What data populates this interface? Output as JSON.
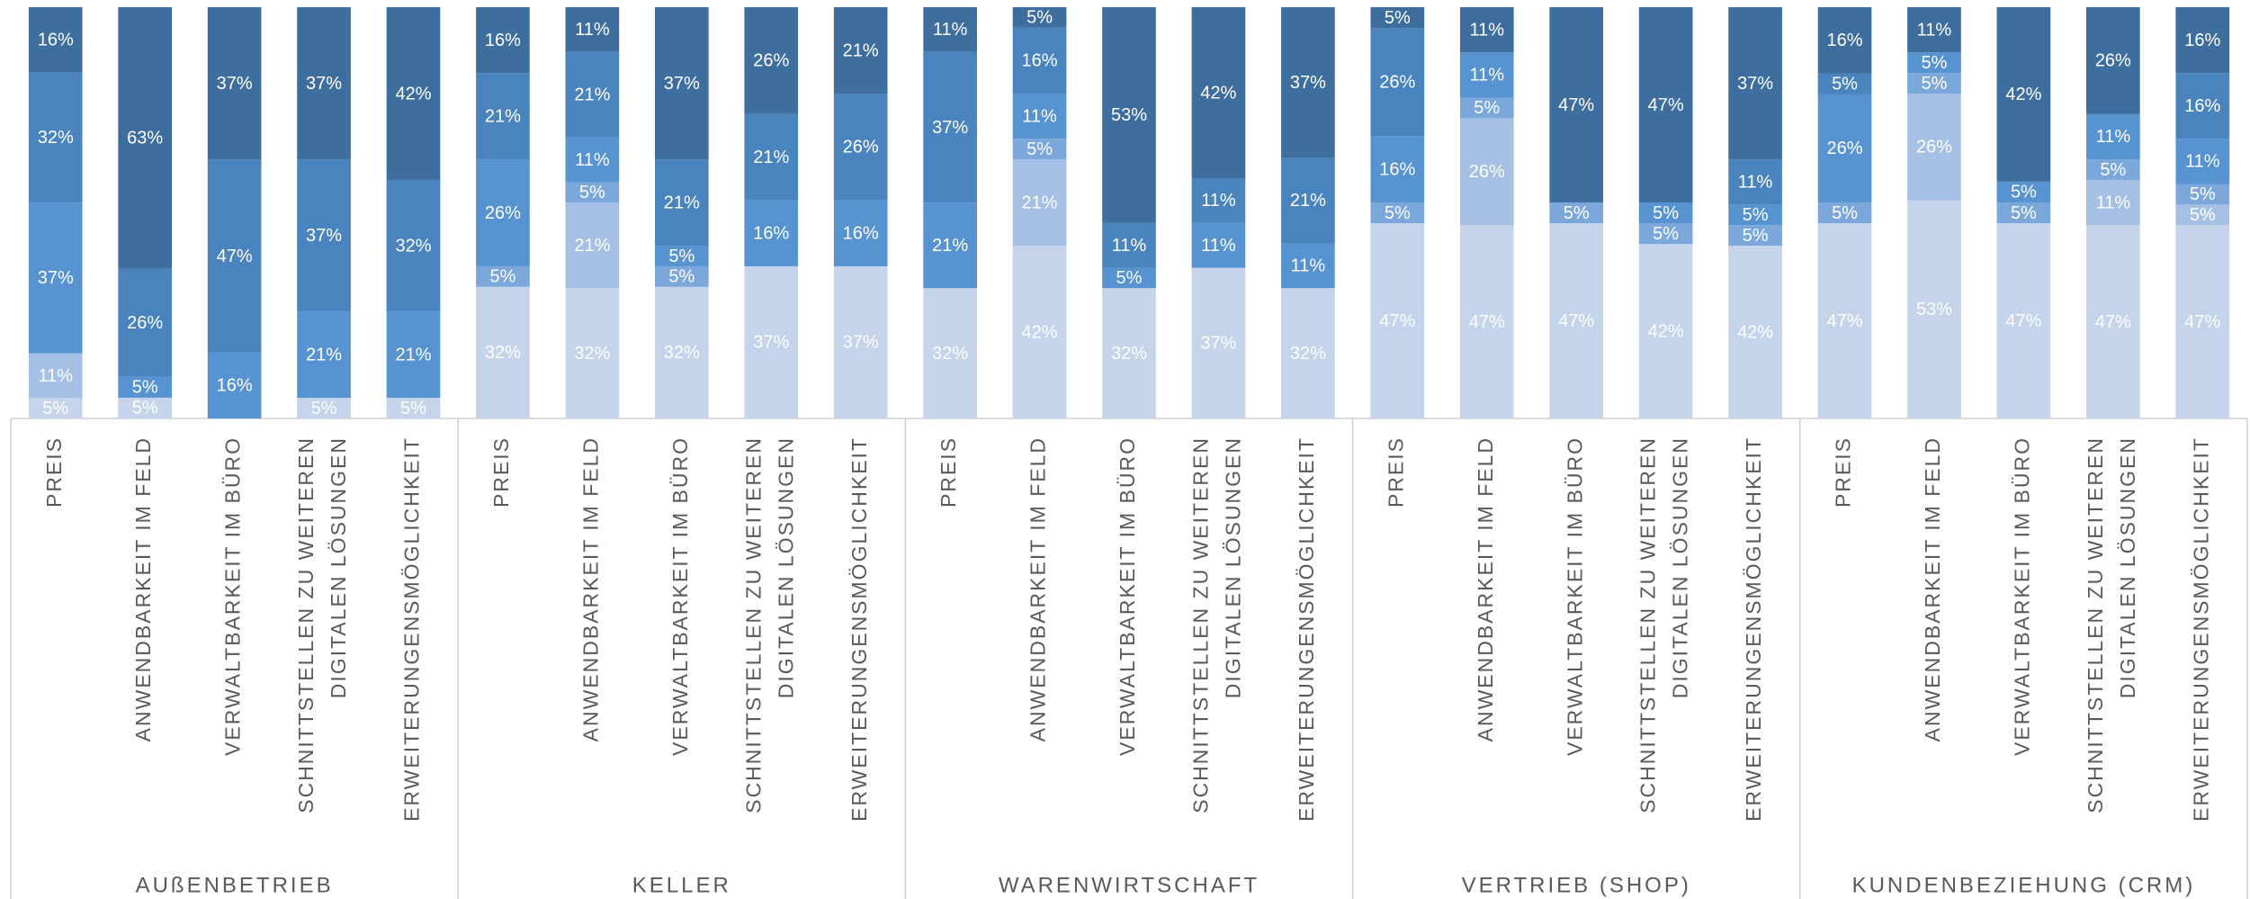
{
  "chart_data": {
    "type": "bar",
    "stacked": true,
    "percent_stacked": true,
    "ylim": [
      0,
      100
    ],
    "groups": [
      {
        "name": "AUßENBETRIEB",
        "categories": [
          "PREIS",
          "ANWENDBARKEIT IM FELD",
          "VERWALTBARKEIT IM BÜRO",
          [
            "SCHNITTSTELLEN ZU WEITEREN",
            "DIGITALEN LÖSUNGEN"
          ],
          "ERWEITERUNGENSMÖGLICHKEIT"
        ]
      },
      {
        "name": "KELLER",
        "categories": [
          "PREIS",
          "ANWENDBARKEIT IM FELD",
          "VERWALTBARKEIT IM BÜRO",
          [
            "SCHNITTSTELLEN ZU WEITEREN",
            "DIGITALEN LÖSUNGEN"
          ],
          "ERWEITERUNGENSMÖGLICHKEIT"
        ]
      },
      {
        "name": "WARENWIRTSCHAFT",
        "categories": [
          "PREIS",
          "ANWENDBARKEIT IM FELD",
          "VERWALTBARKEIT IM BÜRO",
          [
            "SCHNITTSTELLEN ZU WEITEREN",
            "DIGITALEN LÖSUNGEN"
          ],
          "ERWEITERUNGENSMÖGLICHKEIT"
        ]
      },
      {
        "name": "VERTRIEB (SHOP)",
        "categories": [
          "PREIS",
          "ANWENDBARKEIT IM FELD",
          "VERWALTBARKEIT IM BÜRO",
          [
            "SCHNITTSTELLEN ZU WEITEREN",
            "DIGITALEN LÖSUNGEN"
          ],
          "ERWEITERUNGENSMÖGLICHKEIT"
        ]
      },
      {
        "name": "KUNDENBEZIEHUNG (CRM)",
        "categories": [
          "PREIS",
          "ANWENDBARKEIT IM FELD",
          "VERWALTBARKEIT IM BÜRO",
          [
            "SCHNITTSTELLEN ZU WEITEREN",
            "DIGITALEN LÖSUNGEN"
          ],
          "ERWEITERUNGENSMÖGLICHKEIT"
        ]
      }
    ],
    "series": [
      {
        "color": "#c5d4ea",
        "values": [
          5,
          5,
          null,
          5,
          5,
          32,
          32,
          32,
          37,
          37,
          32,
          42,
          32,
          37,
          32,
          47,
          47,
          47,
          42,
          42,
          47,
          53,
          47,
          47,
          47
        ],
        "value_labels": [
          "5%",
          "5%",
          null,
          "5%",
          "5%",
          "32%",
          "32%",
          "32%",
          "37%",
          "37%",
          "32%",
          "42%",
          "32%",
          "37%",
          "32%",
          "47%",
          "47%",
          "47%",
          "42%",
          "42%",
          "47%",
          "53%",
          "47%",
          "47%",
          "47%"
        ]
      },
      {
        "color": "#a5c0e4",
        "values": [
          11,
          null,
          null,
          null,
          null,
          null,
          21,
          null,
          null,
          null,
          null,
          21,
          null,
          null,
          null,
          null,
          26,
          null,
          null,
          null,
          null,
          26,
          null,
          11,
          5
        ],
        "value_labels": [
          "11%",
          null,
          null,
          null,
          null,
          null,
          "21%",
          null,
          null,
          null,
          null,
          "21%",
          null,
          null,
          null,
          null,
          "26%",
          null,
          null,
          null,
          null,
          "26%",
          null,
          "11%",
          "5%"
        ]
      },
      {
        "color": "#7ba7da",
        "values": [
          null,
          null,
          null,
          null,
          null,
          5,
          5,
          5,
          null,
          null,
          null,
          5,
          null,
          null,
          null,
          5,
          5,
          5,
          5,
          5,
          5,
          5,
          5,
          5,
          5
        ],
        "value_labels": [
          null,
          null,
          null,
          null,
          null,
          "5%",
          "5%",
          "5%",
          null,
          null,
          null,
          "5%",
          null,
          null,
          null,
          "5%",
          "5%",
          "5%",
          "5%",
          "5%",
          "5%",
          "5%",
          "5%",
          "5%",
          "5%"
        ]
      },
      {
        "color": "#5693d0",
        "values": [
          37,
          5,
          16,
          21,
          21,
          26,
          11,
          5,
          16,
          16,
          21,
          11,
          5,
          11,
          11,
          16,
          11,
          null,
          5,
          5,
          26,
          5,
          5,
          11,
          11
        ],
        "value_labels": [
          "37%",
          "5%",
          "16%",
          "21%",
          "21%",
          "26%",
          "11%",
          "5%",
          "16%",
          "16%",
          "21%",
          "11%",
          "5%",
          "11%",
          "11%",
          "16%",
          "11%",
          null,
          "5%",
          "5%",
          "26%",
          "5%",
          "5%",
          "11%",
          "11%"
        ]
      },
      {
        "color": "#4a84be",
        "values": [
          32,
          26,
          47,
          37,
          32,
          21,
          21,
          21,
          21,
          26,
          37,
          16,
          11,
          11,
          21,
          26,
          null,
          null,
          null,
          11,
          5,
          null,
          null,
          null,
          16
        ],
        "value_labels": [
          "32%",
          "26%",
          "47%",
          "37%",
          "32%",
          "21%",
          "21%",
          "21%",
          "21%",
          "26%",
          "37%",
          "16%",
          "11%",
          "11%",
          "21%",
          "26%",
          null,
          null,
          null,
          "11%",
          "5%",
          null,
          null,
          null,
          "16%"
        ]
      },
      {
        "color": "#3e6e9e",
        "values": [
          16,
          63,
          37,
          37,
          42,
          16,
          11,
          37,
          26,
          21,
          11,
          5,
          53,
          42,
          37,
          5,
          11,
          47,
          47,
          37,
          16,
          11,
          42,
          26,
          16
        ],
        "value_labels": [
          "16%",
          "63%",
          "37%",
          "37%",
          "42%",
          "16%",
          "11%",
          "37%",
          "26%",
          "21%",
          "11%",
          "5%",
          "53%",
          "42%",
          "37%",
          "5%",
          "11%",
          "47%",
          "47%",
          "37%",
          "16%",
          "11%",
          "42%",
          "26%",
          "16%"
        ]
      }
    ]
  }
}
